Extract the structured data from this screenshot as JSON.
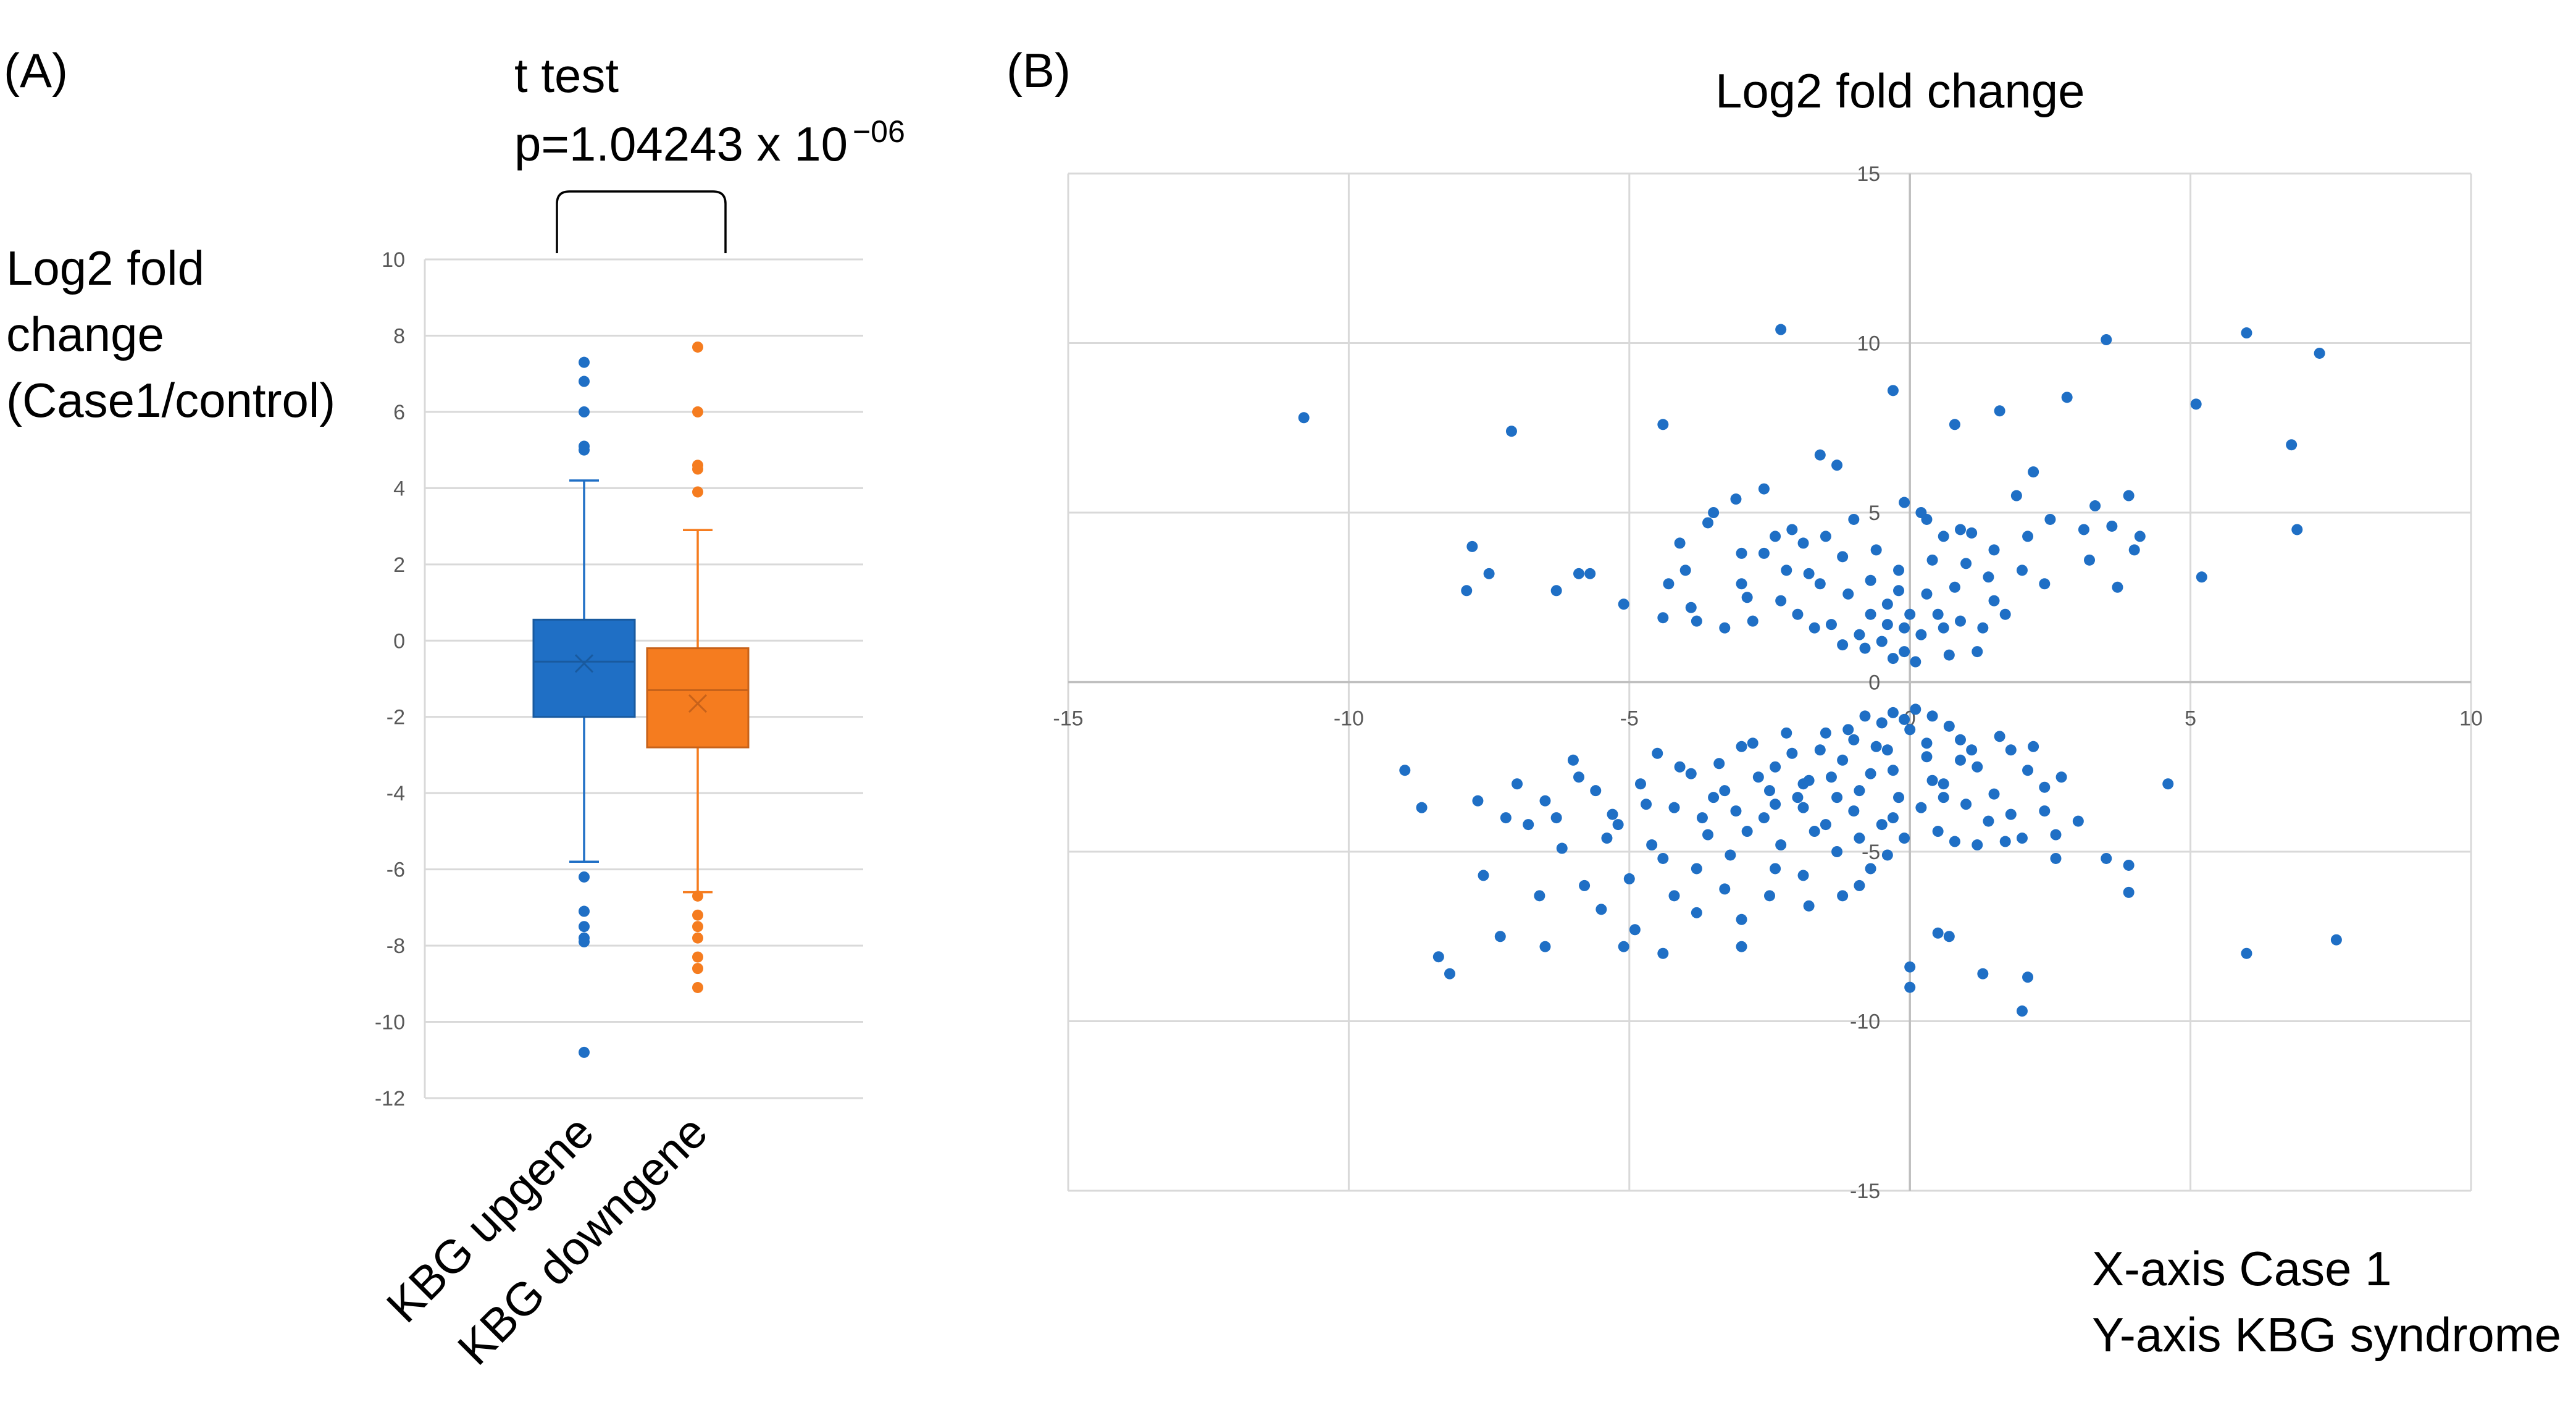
{
  "panel_a": {
    "label": "(A)",
    "test_title": "t test",
    "p_value_prefix": "p=1.04243 x 10",
    "p_value_exponent": "−06",
    "ylabel_lines": [
      "Log2 fold",
      "change",
      "(Case1/control)"
    ]
  },
  "panel_b": {
    "label": "(B)",
    "title": "Log2 fold change",
    "axis_note_x": "X-axis Case 1",
    "axis_note_y": "Y-axis KBG syndrome"
  },
  "chart_data": [
    {
      "type": "box",
      "title": "",
      "ylabel": "Log2 fold change (Case1/control)",
      "ylim": [
        -12,
        10
      ],
      "yticks": [
        -12,
        -10,
        -8,
        -6,
        -4,
        -2,
        0,
        2,
        4,
        6,
        8,
        10
      ],
      "grid": true,
      "categories": [
        "KBG upgene",
        "KBG downgene"
      ],
      "series": [
        {
          "name": "KBG upgene",
          "color": "#1f6fc5",
          "whisker_low": -5.8,
          "q1": -2.0,
          "median": -0.55,
          "mean": -0.6,
          "q3": 0.55,
          "whisker_high": 4.2,
          "outliers": [
            7.3,
            6.8,
            6.0,
            5.1,
            5.0,
            -6.2,
            -7.1,
            -7.5,
            -7.8,
            -7.9,
            -10.8
          ]
        },
        {
          "name": "KBG downgene",
          "color": "#f57c1f",
          "whisker_low": -6.6,
          "q1": -2.8,
          "median": -1.3,
          "mean": -1.65,
          "q3": -0.2,
          "whisker_high": 2.9,
          "outliers": [
            7.7,
            6.0,
            4.6,
            4.5,
            3.9,
            -6.7,
            -7.2,
            -7.5,
            -7.8,
            -8.3,
            -8.6,
            -9.1
          ]
        }
      ]
    },
    {
      "type": "scatter",
      "title": "Log2 fold change",
      "xlabel": "X-axis Case 1",
      "ylabel": "Y-axis KBG syndrome",
      "xlim": [
        -15,
        10
      ],
      "ylim": [
        -15,
        15
      ],
      "xticks": [
        -15,
        -10,
        -5,
        0,
        5,
        10
      ],
      "yticks": [
        -15,
        -10,
        -5,
        0,
        5,
        10,
        15
      ],
      "grid": true,
      "color": "#1f6fc5",
      "points": [
        [
          -10.8,
          7.8
        ],
        [
          -7.1,
          7.4
        ],
        [
          -4.4,
          7.6
        ],
        [
          -2.3,
          10.4
        ],
        [
          -0.3,
          8.6
        ],
        [
          0.8,
          7.6
        ],
        [
          1.6,
          8.0
        ],
        [
          2.8,
          8.4
        ],
        [
          3.5,
          10.1
        ],
        [
          6.0,
          10.3
        ],
        [
          7.3,
          9.7
        ],
        [
          5.1,
          8.2
        ],
        [
          6.8,
          7.0
        ],
        [
          6.9,
          4.5
        ],
        [
          5.2,
          3.1
        ],
        [
          2.2,
          6.2
        ],
        [
          -1.6,
          6.7
        ],
        [
          -1.3,
          6.4
        ],
        [
          -7.8,
          4.0
        ],
        [
          -7.5,
          3.2
        ],
        [
          -7.9,
          2.7
        ],
        [
          -6.3,
          2.7
        ],
        [
          -5.9,
          3.2
        ],
        [
          -5.7,
          3.2
        ],
        [
          -5.1,
          2.3
        ],
        [
          -4.4,
          1.9
        ],
        [
          -4.0,
          3.3
        ],
        [
          -3.1,
          5.4
        ],
        [
          -2.6,
          5.7
        ],
        [
          -3.6,
          4.7
        ],
        [
          -3.0,
          3.8
        ],
        [
          -2.4,
          4.3
        ],
        [
          -3.3,
          1.6
        ],
        [
          -2.8,
          1.8
        ],
        [
          -4.3,
          2.9
        ],
        [
          -1.5,
          4.3
        ],
        [
          -1.8,
          3.2
        ],
        [
          -1.1,
          2.6
        ],
        [
          -0.7,
          3.0
        ],
        [
          -0.4,
          2.3
        ],
        [
          -0.2,
          3.3
        ],
        [
          -0.5,
          1.2
        ],
        [
          -0.8,
          1.0
        ],
        [
          -0.1,
          0.9
        ],
        [
          0.2,
          1.4
        ],
        [
          0.5,
          2.0
        ],
        [
          0.8,
          2.8
        ],
        [
          1.0,
          3.5
        ],
        [
          1.3,
          1.6
        ],
        [
          1.5,
          2.4
        ],
        [
          0.3,
          4.8
        ],
        [
          0.6,
          4.3
        ],
        [
          1.1,
          4.4
        ],
        [
          -0.1,
          5.3
        ],
        [
          0.2,
          5.0
        ],
        [
          0.9,
          4.5
        ],
        [
          1.9,
          5.5
        ],
        [
          2.5,
          4.8
        ],
        [
          3.3,
          5.2
        ],
        [
          3.1,
          4.5
        ],
        [
          3.6,
          4.6
        ],
        [
          3.9,
          5.5
        ],
        [
          4.1,
          4.3
        ],
        [
          3.7,
          2.8
        ],
        [
          3.2,
          3.6
        ],
        [
          2.4,
          2.9
        ],
        [
          2.0,
          3.3
        ],
        [
          -0.3,
          0.7
        ],
        [
          0.1,
          0.6
        ],
        [
          0.7,
          0.8
        ],
        [
          1.2,
          0.9
        ],
        [
          -2.0,
          2.0
        ],
        [
          -1.4,
          1.7
        ],
        [
          -0.9,
          1.4
        ],
        [
          -2.2,
          3.3
        ],
        [
          -1.9,
          4.1
        ],
        [
          -1.0,
          4.8
        ],
        [
          -0.6,
          3.9
        ],
        [
          0.0,
          2.0
        ],
        [
          0.4,
          3.6
        ],
        [
          1.4,
          3.1
        ],
        [
          -3.8,
          1.8
        ],
        [
          -2.9,
          2.5
        ],
        [
          -2.1,
          4.5
        ],
        [
          -1.2,
          3.7
        ],
        [
          -0.4,
          1.7
        ],
        [
          0.6,
          1.6
        ],
        [
          1.7,
          2.0
        ],
        [
          -1.2,
          1.1
        ],
        [
          -0.7,
          2.0
        ],
        [
          -0.1,
          1.6
        ],
        [
          0.3,
          2.6
        ],
        [
          -1.6,
          2.9
        ],
        [
          -2.6,
          3.8
        ],
        [
          -3.5,
          5.0
        ],
        [
          -4.1,
          4.1
        ],
        [
          -3.9,
          2.2
        ],
        [
          -3.0,
          2.9
        ],
        [
          -2.3,
          2.4
        ],
        [
          -1.7,
          1.6
        ],
        [
          -0.2,
          2.7
        ],
        [
          0.9,
          1.8
        ],
        [
          1.5,
          3.9
        ],
        [
          2.1,
          4.3
        ],
        [
          4.0,
          3.9
        ],
        [
          -9.0,
          -2.6
        ],
        [
          -8.7,
          -3.7
        ],
        [
          -7.7,
          -3.5
        ],
        [
          -7.2,
          -4.0
        ],
        [
          -6.8,
          -4.2
        ],
        [
          -6.3,
          -4.0
        ],
        [
          -6.0,
          -2.3
        ],
        [
          -5.6,
          -3.2
        ],
        [
          -5.2,
          -4.2
        ],
        [
          -4.8,
          -3.0
        ],
        [
          -4.5,
          -2.1
        ],
        [
          -4.2,
          -3.7
        ],
        [
          -3.9,
          -2.7
        ],
        [
          -3.6,
          -4.5
        ],
        [
          -3.3,
          -3.2
        ],
        [
          -3.0,
          -1.9
        ],
        [
          -2.7,
          -2.8
        ],
        [
          -2.4,
          -3.6
        ],
        [
          -2.1,
          -2.1
        ],
        [
          -1.8,
          -2.9
        ],
        [
          -1.5,
          -1.5
        ],
        [
          -1.2,
          -2.3
        ],
        [
          -0.9,
          -3.2
        ],
        [
          -0.6,
          -1.9
        ],
        [
          -0.3,
          -2.6
        ],
        [
          0.0,
          -1.4
        ],
        [
          0.3,
          -2.2
        ],
        [
          0.6,
          -3.0
        ],
        [
          0.9,
          -1.7
        ],
        [
          1.2,
          -2.5
        ],
        [
          1.5,
          -3.3
        ],
        [
          1.8,
          -2.0
        ],
        [
          2.1,
          -2.6
        ],
        [
          2.4,
          -3.1
        ],
        [
          2.7,
          -2.8
        ],
        [
          3.0,
          -4.1
        ],
        [
          2.6,
          -4.5
        ],
        [
          2.0,
          -4.6
        ],
        [
          -0.3,
          -0.9
        ],
        [
          -0.1,
          -1.1
        ],
        [
          0.1,
          -0.8
        ],
        [
          -0.5,
          -1.2
        ],
        [
          -0.8,
          -1.0
        ],
        [
          -1.1,
          -1.4
        ],
        [
          0.4,
          -1.0
        ],
        [
          0.7,
          -1.3
        ],
        [
          -1.4,
          -2.8
        ],
        [
          -2.0,
          -3.4
        ],
        [
          -2.6,
          -4.0
        ],
        [
          -3.2,
          -5.1
        ],
        [
          -3.8,
          -5.5
        ],
        [
          -4.4,
          -5.2
        ],
        [
          -5.0,
          -5.8
        ],
        [
          -5.8,
          -6.0
        ],
        [
          -6.6,
          -6.3
        ],
        [
          -7.6,
          -5.7
        ],
        [
          -8.4,
          -8.1
        ],
        [
          -8.2,
          -8.6
        ],
        [
          -7.3,
          -7.5
        ],
        [
          -6.5,
          -7.8
        ],
        [
          -5.1,
          -7.8
        ],
        [
          -4.9,
          -7.3
        ],
        [
          -4.4,
          -8.0
        ],
        [
          -3.8,
          -6.8
        ],
        [
          -3.0,
          -7.0
        ],
        [
          -3.0,
          -7.8
        ],
        [
          -2.5,
          -6.3
        ],
        [
          -1.9,
          -5.7
        ],
        [
          -1.3,
          -5.0
        ],
        [
          -0.7,
          -5.5
        ],
        [
          -0.9,
          -6.0
        ],
        [
          0.0,
          -8.4
        ],
        [
          0.0,
          -9.0
        ],
        [
          0.7,
          -7.5
        ],
        [
          1.3,
          -8.6
        ],
        [
          2.1,
          -8.7
        ],
        [
          2.0,
          -9.7
        ],
        [
          0.5,
          -7.4
        ],
        [
          -0.1,
          -4.6
        ],
        [
          0.8,
          -4.7
        ],
        [
          1.2,
          -4.8
        ],
        [
          1.7,
          -4.7
        ],
        [
          2.6,
          -5.2
        ],
        [
          3.5,
          -5.2
        ],
        [
          3.9,
          -6.2
        ],
        [
          3.9,
          -5.4
        ],
        [
          4.6,
          -3.0
        ],
        [
          6.0,
          -8.0
        ],
        [
          7.6,
          -7.6
        ],
        [
          -1.7,
          -4.4
        ],
        [
          -2.3,
          -4.8
        ],
        [
          -2.9,
          -4.4
        ],
        [
          -3.5,
          -3.4
        ],
        [
          -4.1,
          -2.5
        ],
        [
          -4.7,
          -3.6
        ],
        [
          -5.3,
          -3.9
        ],
        [
          -5.9,
          -2.8
        ],
        [
          -6.5,
          -3.5
        ],
        [
          -7.0,
          -3.0
        ],
        [
          -1.0,
          -3.8
        ],
        [
          -0.5,
          -4.2
        ],
        [
          0.2,
          -3.7
        ],
        [
          0.5,
          -4.4
        ],
        [
          1.0,
          -3.6
        ],
        [
          1.4,
          -4.1
        ],
        [
          -2.2,
          -1.5
        ],
        [
          -1.6,
          -2.0
        ],
        [
          -1.0,
          -1.7
        ],
        [
          -0.4,
          -2.0
        ],
        [
          0.3,
          -1.8
        ],
        [
          0.9,
          -2.3
        ],
        [
          -3.4,
          -2.4
        ],
        [
          -2.8,
          -1.8
        ],
        [
          -2.4,
          -2.5
        ],
        [
          -1.9,
          -3.0
        ],
        [
          -1.3,
          -3.4
        ],
        [
          -0.7,
          -2.7
        ],
        [
          -0.2,
          -3.4
        ],
        [
          0.4,
          -2.9
        ],
        [
          1.1,
          -2.0
        ],
        [
          1.6,
          -1.6
        ],
        [
          2.2,
          -1.9
        ],
        [
          -4.6,
          -4.8
        ],
        [
          -5.4,
          -4.6
        ],
        [
          -6.2,
          -4.9
        ],
        [
          -3.7,
          -4.0
        ],
        [
          -3.1,
          -3.8
        ],
        [
          -2.5,
          -3.2
        ],
        [
          -1.9,
          -3.7
        ],
        [
          -1.5,
          -4.2
        ],
        [
          -0.9,
          -4.6
        ],
        [
          -0.3,
          -4.0
        ],
        [
          0.6,
          -3.4
        ],
        [
          1.8,
          -3.9
        ],
        [
          2.4,
          -3.8
        ],
        [
          -1.2,
          -6.3
        ],
        [
          -1.8,
          -6.6
        ],
        [
          -2.4,
          -5.5
        ],
        [
          -3.3,
          -6.1
        ],
        [
          -4.2,
          -6.3
        ],
        [
          -5.5,
          -6.7
        ],
        [
          -0.4,
          -5.1
        ]
      ]
    }
  ]
}
